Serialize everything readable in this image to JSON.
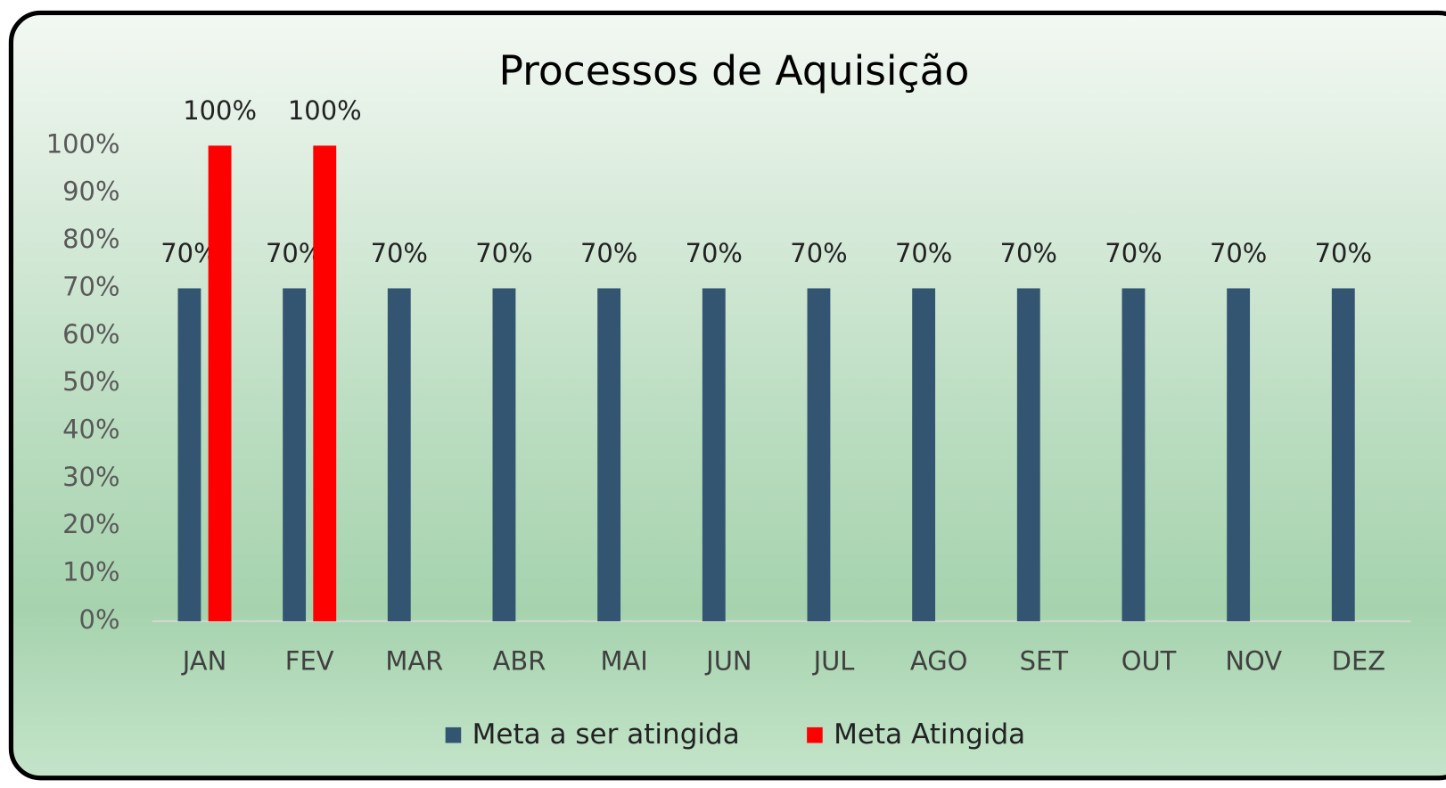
{
  "chart_data": {
    "type": "bar",
    "title": "Processos de Aquisição",
    "categories": [
      "JAN",
      "FEV",
      "MAR",
      "ABR",
      "MAI",
      "JUN",
      "JUL",
      "AGO",
      "SET",
      "OUT",
      "NOV",
      "DEZ"
    ],
    "series": [
      {
        "name": "Meta a ser atingida",
        "color": "#335571",
        "values": [
          70,
          70,
          70,
          70,
          70,
          70,
          70,
          70,
          70,
          70,
          70,
          70
        ],
        "value_labels": [
          "70%",
          "70%",
          "70%",
          "70%",
          "70%",
          "70%",
          "70%",
          "70%",
          "70%",
          "70%",
          "70%",
          "70%"
        ]
      },
      {
        "name": "Meta Atingida",
        "color": "#ff0000",
        "values": [
          100,
          100,
          null,
          null,
          null,
          null,
          null,
          null,
          null,
          null,
          null,
          null
        ],
        "value_labels": [
          "100%",
          "100%",
          null,
          null,
          null,
          null,
          null,
          null,
          null,
          null,
          null,
          null
        ]
      }
    ],
    "ylim": [
      0,
      100
    ],
    "yticks": [
      {
        "value": 0,
        "label": "0%"
      },
      {
        "value": 10,
        "label": "10%"
      },
      {
        "value": 20,
        "label": "20%"
      },
      {
        "value": 30,
        "label": "30%"
      },
      {
        "value": 40,
        "label": "40%"
      },
      {
        "value": 50,
        "label": "50%"
      },
      {
        "value": 60,
        "label": "60%"
      },
      {
        "value": 70,
        "label": "70%"
      },
      {
        "value": 80,
        "label": "80%"
      },
      {
        "value": 90,
        "label": "90%"
      },
      {
        "value": 100,
        "label": "100%"
      }
    ],
    "grid": false,
    "legend": "bottom"
  }
}
